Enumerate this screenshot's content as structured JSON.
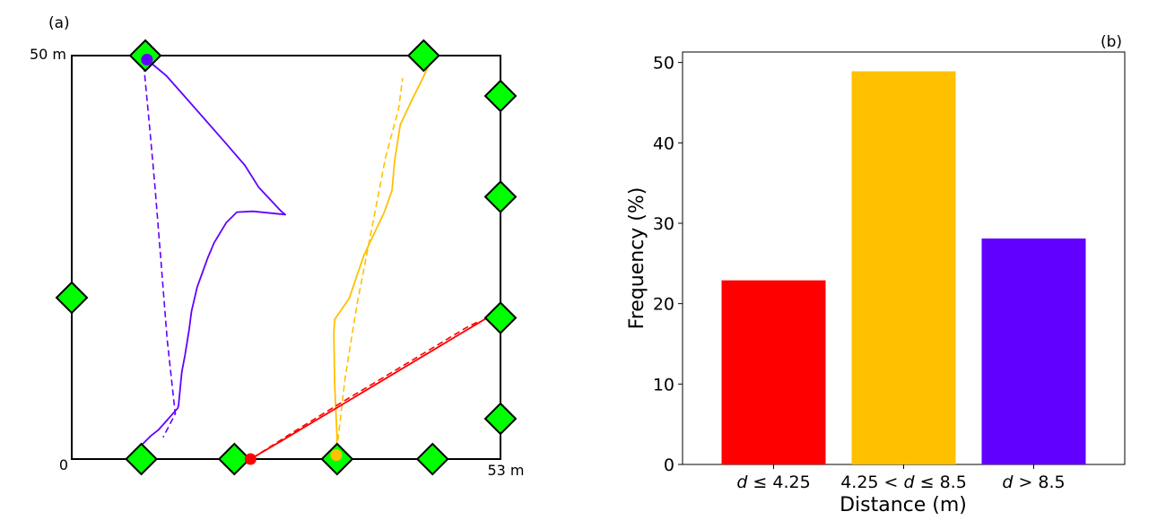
{
  "panel_a": {
    "label": "(a)",
    "y_top_label": "50 m",
    "origin_label": "0",
    "x_right_label": "53 m",
    "colors": {
      "diamond": "#00ff00",
      "purple": "#6200ff",
      "orange": "#ffc000",
      "red": "#ff0000"
    }
  },
  "panel_b": {
    "label": "(b)"
  },
  "chart_data": [
    {
      "type": "line",
      "panel": "(a)",
      "xlim": [
        0,
        53
      ],
      "ylim": [
        0,
        50
      ],
      "anchors": [
        {
          "x": 9.1,
          "y": 50
        },
        {
          "x": 43.5,
          "y": 50
        },
        {
          "x": 53,
          "y": 45
        },
        {
          "x": 53,
          "y": 32.5
        },
        {
          "x": 53,
          "y": 17.5
        },
        {
          "x": 53,
          "y": 5
        },
        {
          "x": 0,
          "y": 20
        },
        {
          "x": 8.6,
          "y": 0
        },
        {
          "x": 20.1,
          "y": 0
        },
        {
          "x": 32.8,
          "y": 0
        },
        {
          "x": 44.6,
          "y": 0
        }
      ],
      "series": [
        {
          "color": "#6200ff",
          "start": {
            "x": 9.3,
            "y": 49.5
          },
          "solid": [
            [
              9.3,
              49.5
            ],
            [
              11.7,
              47.5
            ],
            [
              13.9,
              45
            ],
            [
              16.1,
              42.5
            ],
            [
              18.9,
              39.3
            ],
            [
              21.4,
              36.4
            ],
            [
              23.1,
              33.7
            ],
            [
              25.9,
              30.7
            ],
            [
              26.4,
              30.3
            ],
            [
              22.4,
              30.7
            ],
            [
              20.4,
              30.6
            ],
            [
              19.1,
              29.3
            ],
            [
              17.6,
              26.8
            ],
            [
              16.8,
              24.9
            ],
            [
              15.5,
              21.3
            ],
            [
              14.8,
              18.3
            ],
            [
              14.5,
              16
            ],
            [
              14.0,
              12.9
            ],
            [
              13.6,
              10.8
            ],
            [
              13.2,
              6.6
            ],
            [
              13.1,
              6.3
            ],
            [
              10.7,
              3.6
            ],
            [
              9.8,
              2.9
            ],
            [
              8.7,
              1.8
            ],
            [
              7.5,
              0.7
            ]
          ],
          "dashed": [
            [
              8.9,
              48.8
            ],
            [
              9.6,
              41.4
            ],
            [
              10.3,
              33.6
            ],
            [
              11.0,
              24.9
            ],
            [
              11.8,
              14.8
            ],
            [
              12.8,
              5.6
            ],
            [
              11.3,
              2.7
            ]
          ]
        },
        {
          "color": "#ffc000",
          "start": {
            "x": 32.7,
            "y": 0.5
          },
          "solid": [
            [
              32.7,
              0.5
            ],
            [
              32.8,
              2.7
            ],
            [
              32.5,
              9.3
            ],
            [
              32.4,
              15.6
            ],
            [
              32.5,
              17.3
            ],
            [
              34.3,
              19.9
            ],
            [
              36.1,
              25.2
            ],
            [
              37.4,
              28
            ],
            [
              38.6,
              30.5
            ],
            [
              39.6,
              33.3
            ],
            [
              39.9,
              36.9
            ],
            [
              40.6,
              41.4
            ],
            [
              41.9,
              44.2
            ],
            [
              43.2,
              46.8
            ],
            [
              44.2,
              48.9
            ]
          ],
          "dashed": [
            [
              32.9,
              2.3
            ],
            [
              33.8,
              10.1
            ],
            [
              35.3,
              19.4
            ],
            [
              36.9,
              27.6
            ],
            [
              38.8,
              37.4
            ],
            [
              40.4,
              43.4
            ],
            [
              40.9,
              47.2
            ]
          ]
        },
        {
          "color": "#ff0000",
          "start": {
            "x": 22.1,
            "y": 0
          },
          "solid": [
            [
              22.1,
              0
            ],
            [
              26.0,
              2.3
            ],
            [
              31.0,
              5.3
            ],
            [
              36.0,
              8.3
            ],
            [
              41.0,
              11.3
            ],
            [
              46.0,
              14.3
            ],
            [
              51.0,
              17.3
            ],
            [
              53.0,
              18.4
            ]
          ],
          "dashed": [
            [
              22.3,
              0.1
            ],
            [
              27.0,
              3.1
            ],
            [
              32.5,
              6.5
            ],
            [
              38.0,
              9.8
            ],
            [
              43.5,
              13.1
            ],
            [
              48.8,
              16.3
            ],
            [
              50.4,
              17.1
            ]
          ]
        }
      ]
    },
    {
      "type": "bar",
      "panel": "(b)",
      "categories": [
        "d ≤ 4.25",
        "4.25 < d ≤ 8.5",
        "d > 8.5"
      ],
      "cat_math": [
        {
          "pre": "",
          "var": "d",
          "post": " ≤ 4.25"
        },
        {
          "pre": "4.25 < ",
          "var": "d",
          "post": " ≤ 8.5"
        },
        {
          "pre": "",
          "var": "d",
          "post": " > 8.5"
        }
      ],
      "values": [
        22.9,
        48.9,
        28.1
      ],
      "colors": [
        "#ff0000",
        "#ffc000",
        "#6200ff"
      ],
      "xlabel": "Distance (m)",
      "ylabel": "Frequency (%)",
      "ylim": [
        0,
        51.3
      ],
      "yticks": [
        0,
        10,
        20,
        30,
        40,
        50
      ],
      "grid": false
    }
  ]
}
